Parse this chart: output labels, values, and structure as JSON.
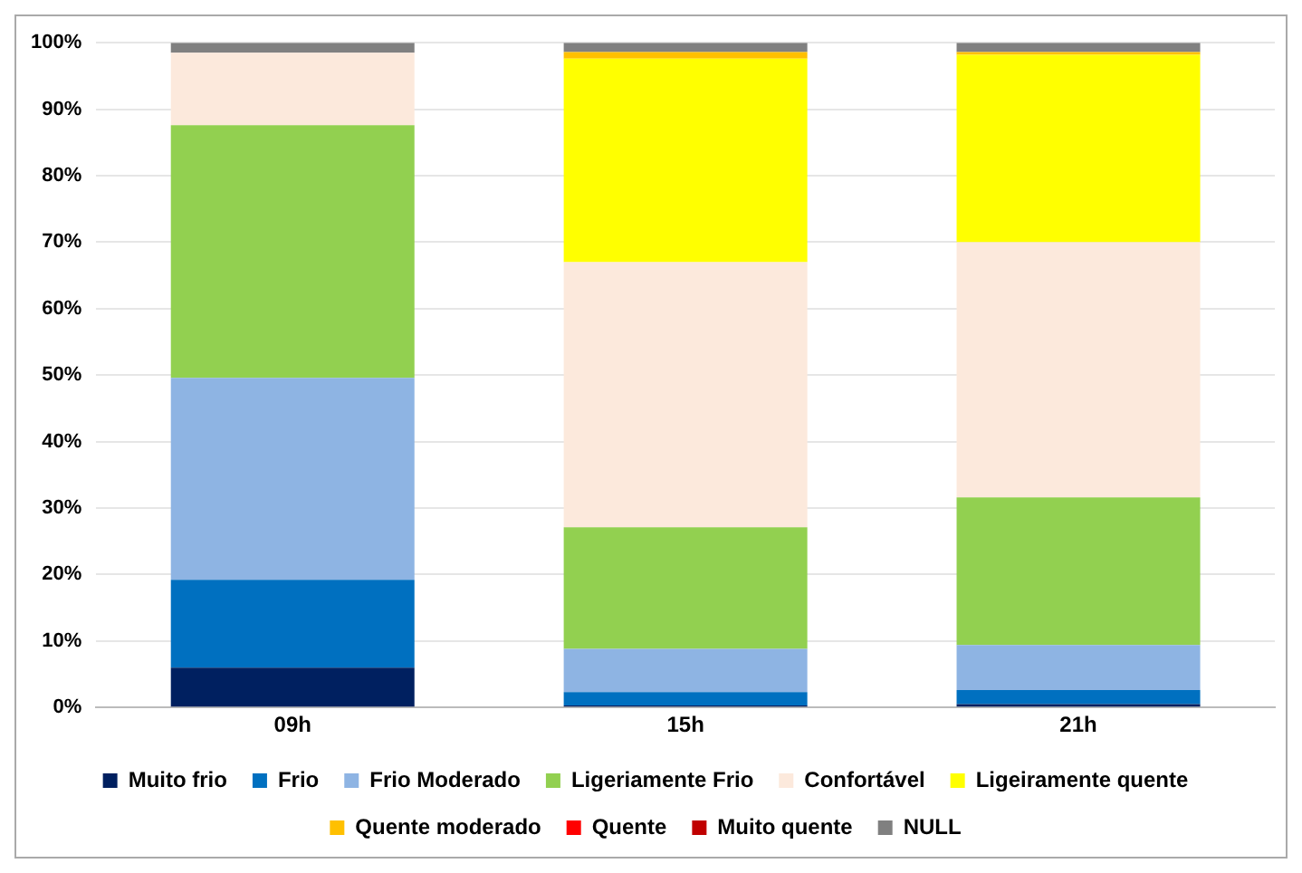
{
  "chart_data": {
    "type": "bar",
    "stacked": true,
    "categories": [
      "09h",
      "15h",
      "21h"
    ],
    "series": [
      {
        "name": "Muito frio",
        "color": "#002060",
        "values": [
          6.0,
          0.3,
          0.5
        ]
      },
      {
        "name": "Frio",
        "color": "#0070c0",
        "values": [
          13.2,
          2.0,
          2.1
        ]
      },
      {
        "name": "Frio Moderado",
        "color": "#8eb4e3",
        "values": [
          30.4,
          6.5,
          6.8
        ]
      },
      {
        "name": "Ligeriamente Frio",
        "color": "#92d050",
        "values": [
          38.0,
          18.3,
          22.2
        ]
      },
      {
        "name": "Confortável",
        "color": "#fce9dc",
        "values": [
          10.9,
          39.9,
          38.4
        ]
      },
      {
        "name": "Ligeiramente quente",
        "color": "#ffff00",
        "values": [
          0,
          30.6,
          28.2
        ]
      },
      {
        "name": "Quente moderado",
        "color": "#ffc000",
        "values": [
          0,
          1.0,
          0.4
        ]
      },
      {
        "name": "Quente",
        "color": "#ff0000",
        "values": [
          0,
          0,
          0
        ]
      },
      {
        "name": "Muito quente",
        "color": "#c00000",
        "values": [
          0,
          0,
          0
        ]
      },
      {
        "name": "NULL",
        "color": "#808080",
        "values": [
          1.5,
          1.4,
          1.4
        ]
      }
    ],
    "ylim": [
      0,
      100
    ],
    "yticks": [
      {
        "value": 0,
        "label": "0%"
      },
      {
        "value": 10,
        "label": "10%"
      },
      {
        "value": 20,
        "label": "20%"
      },
      {
        "value": 30,
        "label": "30%"
      },
      {
        "value": 40,
        "label": "40%"
      },
      {
        "value": 50,
        "label": "50%"
      },
      {
        "value": 60,
        "label": "60%"
      },
      {
        "value": 70,
        "label": "70%"
      },
      {
        "value": 80,
        "label": "80%"
      },
      {
        "value": 90,
        "label": "90%"
      },
      {
        "value": 100,
        "label": "100%"
      }
    ],
    "grid": "y",
    "legend": "bottom"
  }
}
